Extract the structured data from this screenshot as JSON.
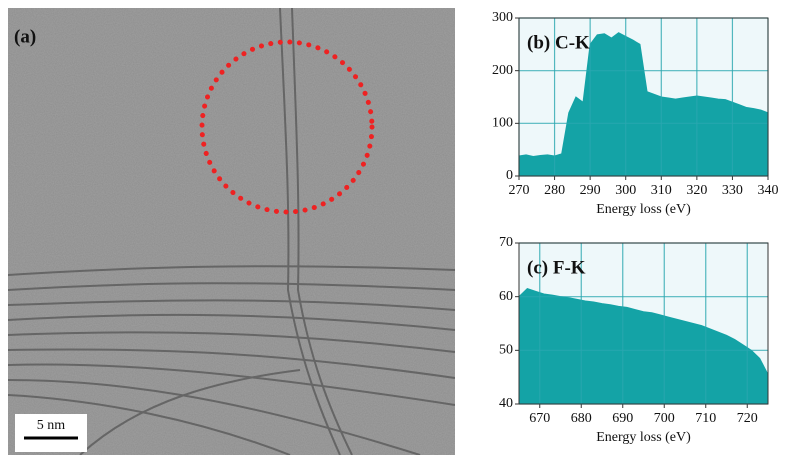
{
  "image": {
    "label": "(a)",
    "scale_bar": "5 nm"
  },
  "chart_data": [
    {
      "type": "area",
      "title": "(b) C-K",
      "x_label": "Energy loss (eV)",
      "color": "#14a3a6",
      "grid": true,
      "xlim": [
        270,
        340
      ],
      "xticks": [
        270,
        280,
        290,
        300,
        310,
        320,
        330,
        340
      ],
      "ylim": [
        0,
        300
      ],
      "yticks": [
        0,
        100,
        200,
        300
      ],
      "x": [
        270,
        272,
        274,
        276,
        278,
        280,
        282,
        284,
        286,
        288,
        290,
        292,
        294,
        296,
        298,
        300,
        302,
        304,
        306,
        308,
        310,
        312,
        314,
        316,
        318,
        320,
        322,
        324,
        326,
        328,
        330,
        332,
        334,
        336,
        338,
        340
      ],
      "values": [
        38,
        40,
        37,
        39,
        40,
        38,
        42,
        120,
        150,
        140,
        250,
        268,
        270,
        262,
        272,
        265,
        258,
        250,
        160,
        155,
        150,
        148,
        146,
        148,
        150,
        152,
        150,
        148,
        146,
        145,
        140,
        135,
        130,
        128,
        125,
        120
      ]
    },
    {
      "type": "area",
      "title": "(c) F-K",
      "x_label": "Energy loss (eV)",
      "color": "#14a3a6",
      "grid": true,
      "xlim": [
        665,
        725
      ],
      "xticks": [
        670,
        680,
        690,
        700,
        710,
        720
      ],
      "ylim": [
        40,
        70
      ],
      "yticks": [
        40,
        50,
        60,
        70
      ],
      "x": [
        665,
        667,
        669,
        671,
        673,
        675,
        677,
        679,
        681,
        683,
        685,
        687,
        689,
        691,
        693,
        695,
        697,
        699,
        701,
        703,
        705,
        707,
        709,
        711,
        713,
        715,
        717,
        719,
        721,
        723,
        725
      ],
      "values": [
        60,
        61.5,
        61,
        60.5,
        60.3,
        60,
        59.8,
        59.5,
        59.2,
        59,
        58.7,
        58.5,
        58.2,
        58,
        57.6,
        57.2,
        57,
        56.6,
        56.2,
        55.8,
        55.4,
        55,
        54.6,
        54,
        53.4,
        52.8,
        52,
        51,
        50,
        48.5,
        45.5
      ]
    }
  ]
}
